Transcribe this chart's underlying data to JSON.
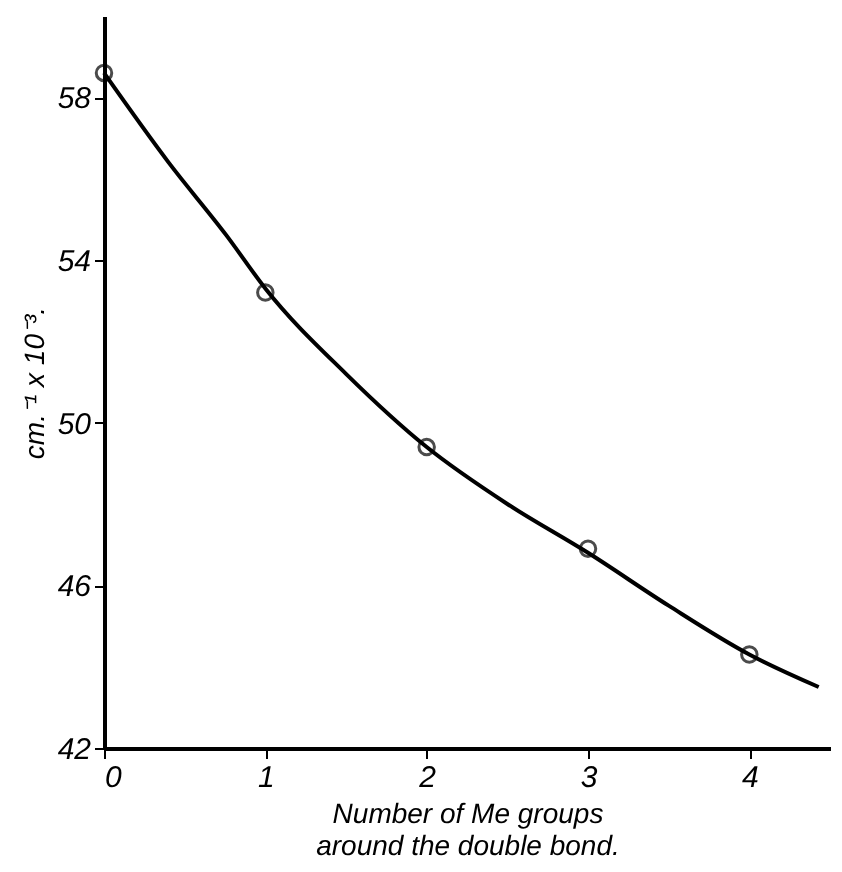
{
  "chart_data": {
    "type": "scatter",
    "xlabel": "Number of Me groups around the double bond.",
    "ylabel": "cm.⁻¹ x 10⁻³.",
    "xlim": [
      0,
      4.5
    ],
    "ylim": [
      42,
      60
    ],
    "xticks": [
      0,
      1,
      2,
      3,
      4
    ],
    "yticks": [
      42,
      46,
      50,
      54,
      58
    ],
    "grid": false,
    "marker": "circle",
    "series": [
      {
        "x": [
          0,
          1,
          2,
          3,
          4
        ],
        "values": [
          58.6,
          53.2,
          49.4,
          46.9,
          44.3
        ],
        "color": "#000000"
      },
      {
        "type": "line",
        "x": [
          0,
          0.4,
          0.76,
          1,
          1.5,
          2,
          2.5,
          3,
          3.5,
          4,
          4.43
        ],
        "values": [
          58.6,
          56.4,
          54.6,
          53.3,
          51.2,
          49.4,
          48.0,
          46.8,
          45.5,
          44.3,
          43.5
        ],
        "color": "#000000",
        "line_style": "solid",
        "marker": "none"
      }
    ]
  }
}
